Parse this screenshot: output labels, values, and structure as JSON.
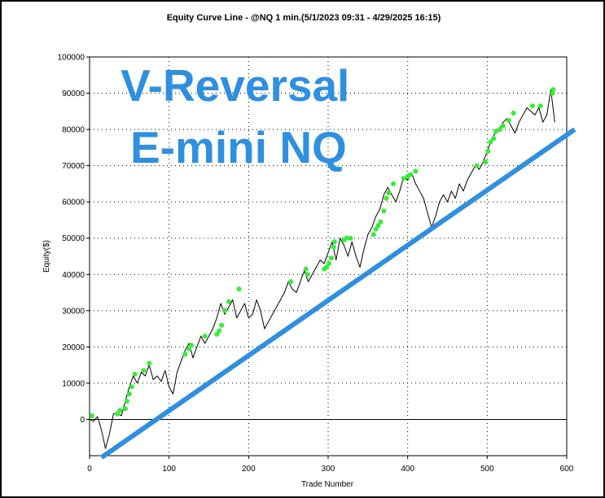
{
  "chart_data": {
    "type": "line",
    "title": "Equity Curve Line - @NQ 1 min.(5/1/2023 09:31 - 4/29/2025 16:15)",
    "xlabel": "Trade Number",
    "ylabel": "Equity($)",
    "xlim": [
      0,
      600
    ],
    "ylim": [
      -10000,
      100000
    ],
    "xticks": [
      "0",
      "100",
      "200",
      "300",
      "400",
      "500",
      "600"
    ],
    "yticks": [
      "0",
      "10000",
      "20000",
      "30000",
      "40000",
      "50000",
      "60000",
      "70000",
      "80000",
      "90000",
      "100000"
    ],
    "grid": true,
    "overlay_text": [
      "V-Reversal",
      "E-mini NQ"
    ],
    "colors": {
      "equity_line": "#000000",
      "new_high_markers": "#33ee33",
      "trend_line": "#2f8fe0",
      "overlay_text": "#2f8fe0"
    },
    "series": [
      {
        "kind": "equity_curve",
        "x": [
          0,
          5,
          10,
          15,
          20,
          25,
          30,
          35,
          40,
          45,
          50,
          55,
          60,
          65,
          70,
          75,
          80,
          85,
          90,
          95,
          100,
          105,
          110,
          115,
          120,
          125,
          130,
          135,
          140,
          145,
          150,
          155,
          160,
          165,
          170,
          175,
          180,
          185,
          190,
          195,
          200,
          205,
          210,
          215,
          220,
          225,
          230,
          235,
          240,
          245,
          250,
          255,
          260,
          265,
          270,
          275,
          280,
          285,
          290,
          295,
          300,
          305,
          310,
          315,
          320,
          325,
          330,
          335,
          340,
          345,
          350,
          355,
          360,
          365,
          370,
          375,
          380,
          385,
          390,
          395,
          400,
          405,
          410,
          415,
          420,
          425,
          430,
          435,
          440,
          445,
          450,
          455,
          460,
          465,
          470,
          475,
          480,
          485,
          490,
          495,
          500,
          505,
          510,
          515,
          520,
          525,
          530,
          535,
          540,
          545,
          550,
          555,
          560,
          565,
          570,
          575,
          580,
          585
        ],
        "y": [
          0,
          -500,
          800,
          -3000,
          -8000,
          -4000,
          1500,
          1800,
          1000,
          5000,
          9000,
          12000,
          10000,
          13000,
          12000,
          15000,
          11000,
          12000,
          10500,
          13500,
          9000,
          7000,
          13000,
          16000,
          19000,
          21000,
          17000,
          20000,
          23000,
          21000,
          23000,
          25000,
          28000,
          32000,
          29000,
          31000,
          33000,
          28000,
          30000,
          32000,
          28000,
          29000,
          33000,
          30000,
          25000,
          27000,
          29000,
          31000,
          33000,
          35000,
          38000,
          36000,
          35000,
          38000,
          41000,
          38000,
          40000,
          42000,
          44000,
          43000,
          46000,
          49000,
          44000,
          50000,
          48000,
          45000,
          49000,
          45000,
          42000,
          47000,
          51000,
          53000,
          56000,
          58000,
          62000,
          64000,
          62000,
          60000,
          63000,
          67000,
          66000,
          68000,
          65000,
          63000,
          61000,
          57000,
          53000,
          56000,
          60000,
          62000,
          60000,
          63000,
          61000,
          65000,
          63000,
          66000,
          68000,
          70000,
          69000,
          71000,
          74000,
          77000,
          79000,
          80000,
          82000,
          83000,
          81000,
          79000,
          82000,
          84000,
          86000,
          85000,
          84000,
          86000,
          82000,
          84000,
          91000,
          82000
        ]
      },
      {
        "kind": "new_equity_highs",
        "x": [
          3,
          35,
          38,
          45,
          47,
          50,
          53,
          57,
          68,
          75,
          120,
          125,
          128,
          145,
          160,
          163,
          166,
          170,
          175,
          188,
          253,
          272,
          274,
          295,
          298,
          301,
          304,
          307,
          308,
          320,
          323,
          328,
          357,
          360,
          363,
          366,
          370,
          373,
          376,
          382,
          395,
          400,
          403,
          410,
          487,
          498,
          501,
          504,
          508,
          511,
          516,
          520,
          527,
          533,
          557,
          567,
          582,
          583
        ],
        "y": [
          1000,
          1500,
          2500,
          3000,
          5000,
          7000,
          9000,
          12500,
          13500,
          15500,
          18000,
          19500,
          20500,
          23000,
          23500,
          24500,
          26000,
          30000,
          32500,
          36000,
          38000,
          41500,
          40000,
          41500,
          42000,
          43000,
          44500,
          47500,
          49000,
          49500,
          50000,
          50000,
          51000,
          52500,
          53500,
          54500,
          57500,
          61000,
          62500,
          65000,
          66500,
          67000,
          67500,
          68500,
          70000,
          71000,
          74000,
          76500,
          77500,
          79500,
          80000,
          81000,
          82500,
          84500,
          86500,
          86500,
          90000,
          91000
        ]
      },
      {
        "kind": "trend_line",
        "x": [
          15,
          610
        ],
        "y": [
          -10500,
          80000
        ]
      }
    ]
  }
}
